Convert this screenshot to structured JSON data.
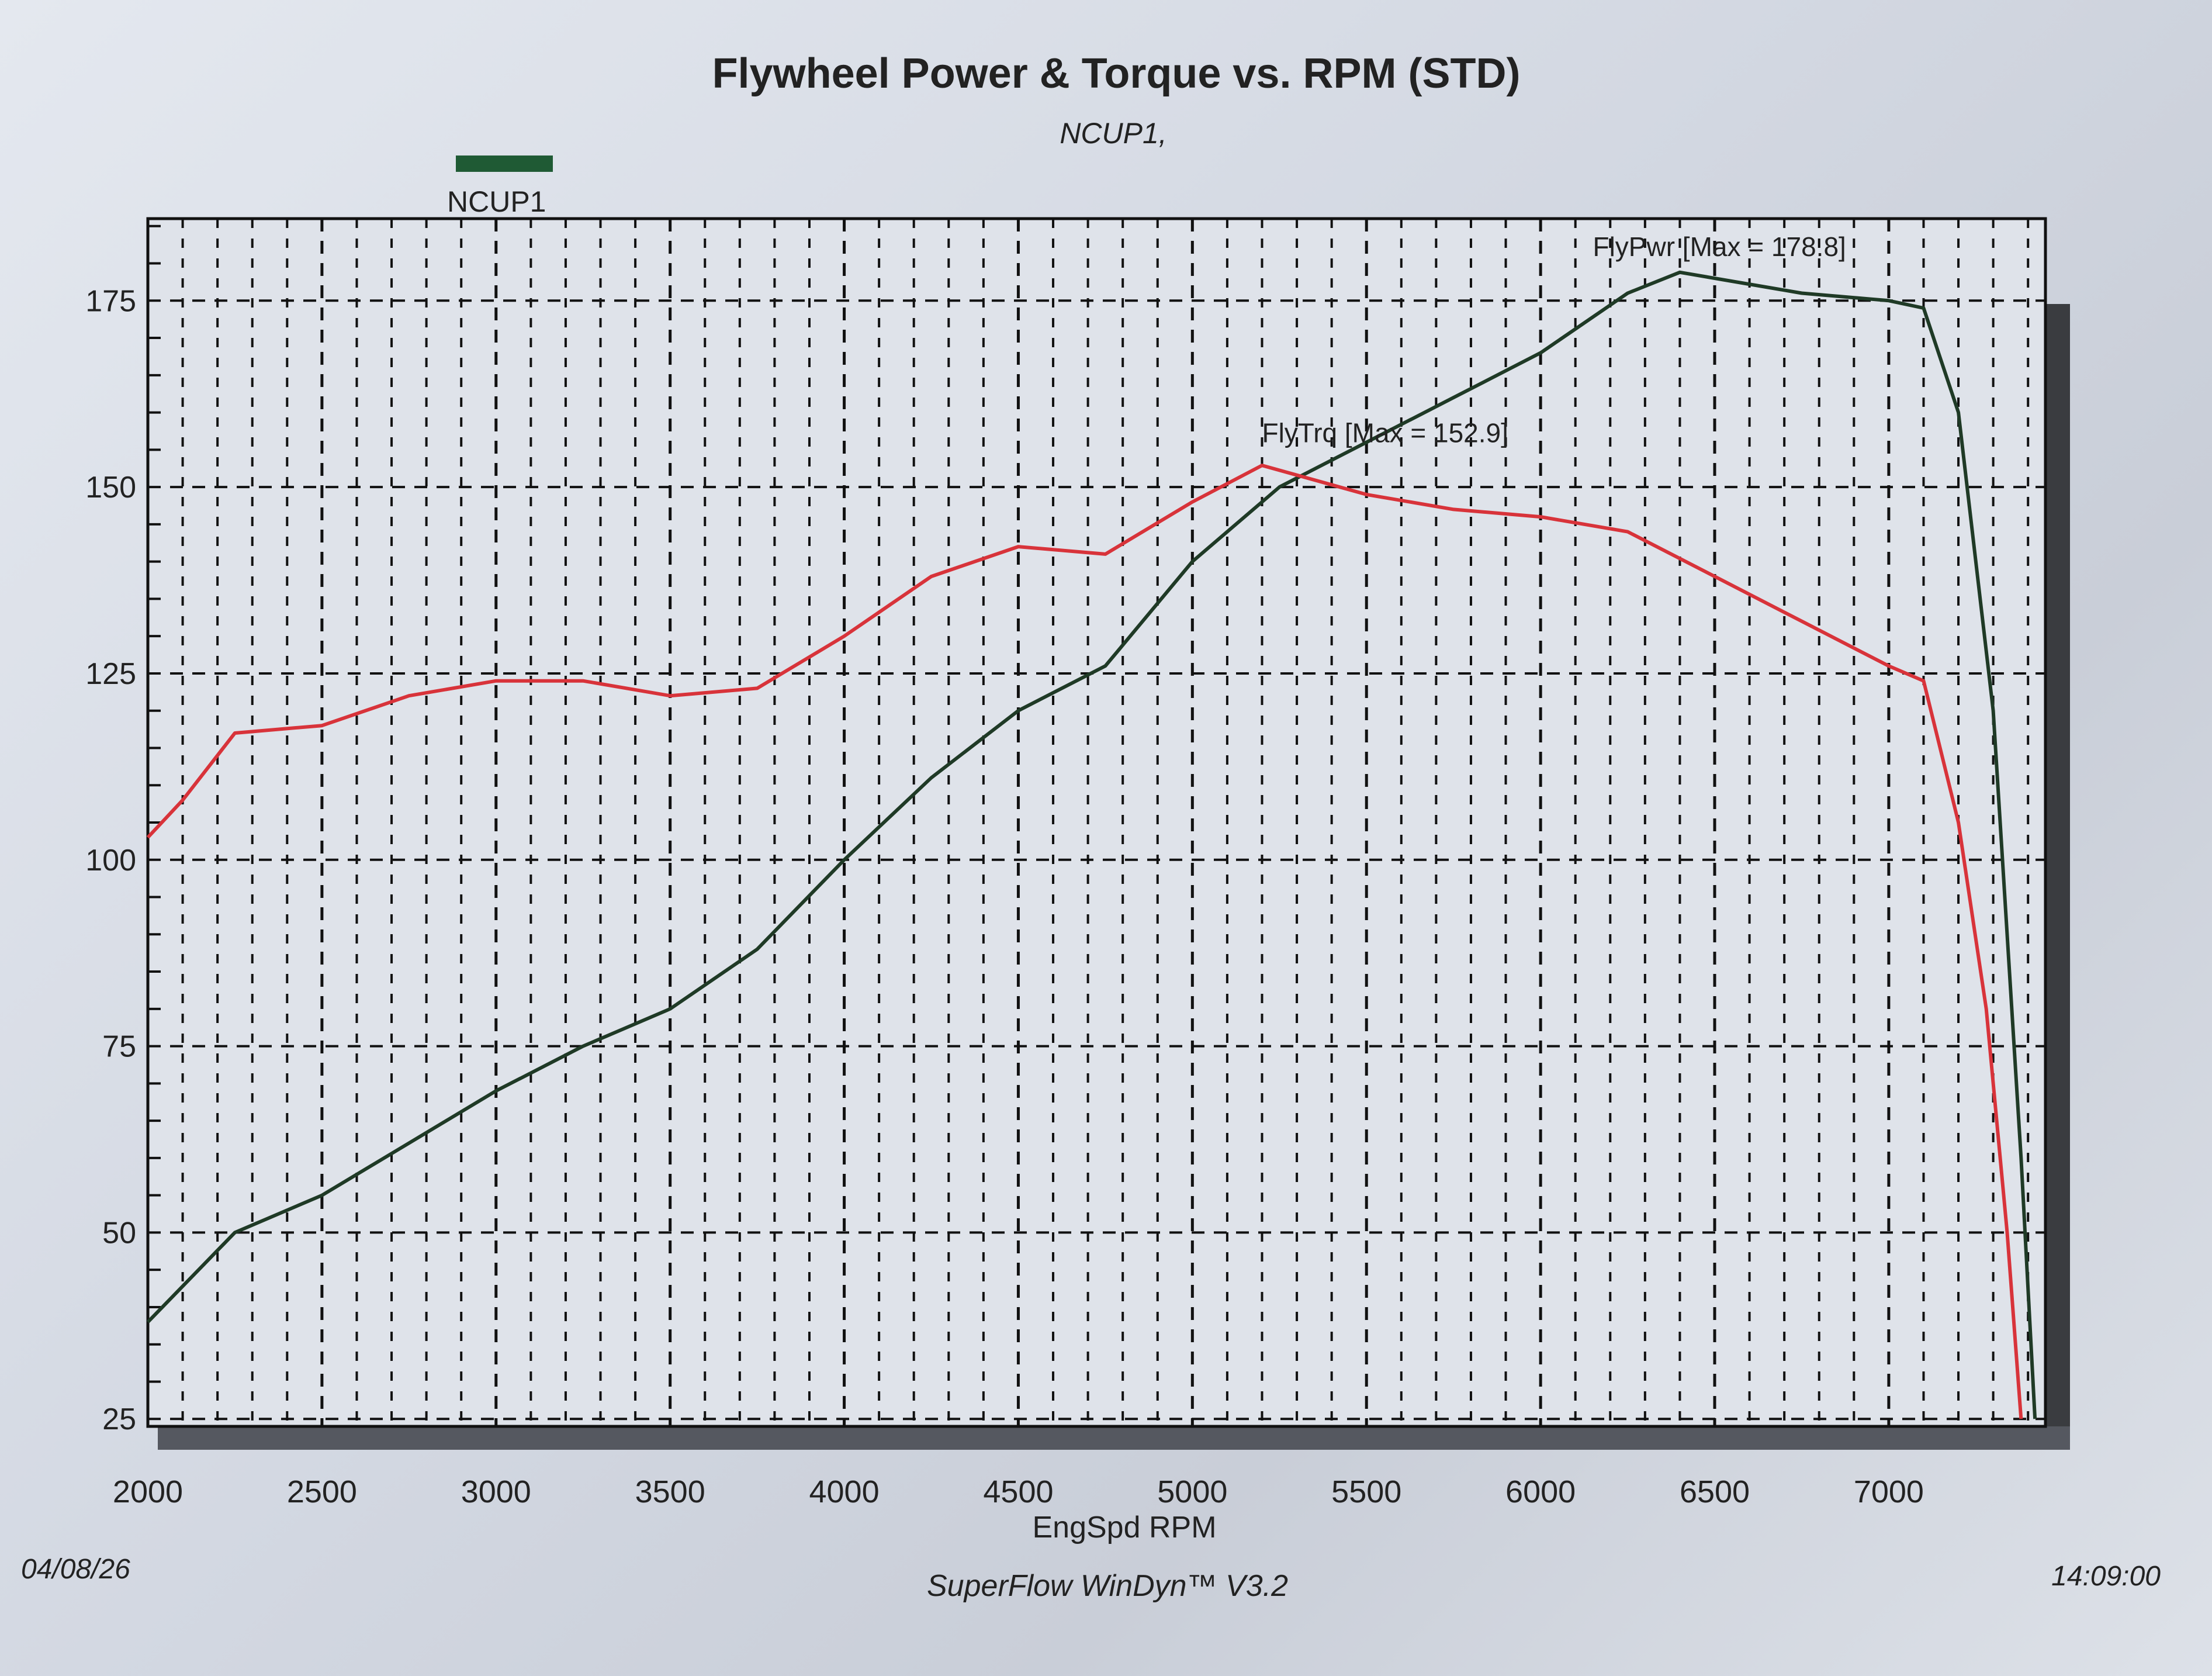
{
  "chart_data": {
    "type": "line",
    "title": "Flywheel Power & Torque vs. RPM (STD)",
    "subtitle": "NCUP1,",
    "legend": [
      {
        "name": "NCUP1",
        "color": "#1f5a34"
      }
    ],
    "legend_placement": "top-left",
    "xlabel": "EngSpd RPM",
    "ylabel": "",
    "xlim": [
      2000,
      7450
    ],
    "ylim": [
      24,
      186
    ],
    "x_ticks": [
      "2000",
      "2500",
      "3000",
      "3500",
      "4000",
      "4500",
      "5000",
      "5500",
      "6000",
      "6500",
      "7000"
    ],
    "y_ticks": [
      "25",
      "50",
      "75",
      "100",
      "125",
      "150",
      "175"
    ],
    "grid": true,
    "series": [
      {
        "name": "FlyPwr",
        "label": "FlyPwr [Max = 178.8]",
        "color": "#1f3a26",
        "max": 178.8,
        "x": [
          2000,
          2250,
          2500,
          2750,
          3000,
          3250,
          3500,
          3750,
          4000,
          4250,
          4500,
          4750,
          5000,
          5250,
          5500,
          5750,
          6000,
          6250,
          6400,
          6750,
          7000,
          7100,
          7200,
          7300,
          7380,
          7420
        ],
        "y": [
          38,
          50,
          55,
          62,
          69,
          75,
          80,
          88,
          100,
          111,
          120,
          126,
          140,
          150,
          156,
          162,
          168,
          176,
          178.8,
          176,
          175,
          174,
          160,
          120,
          60,
          25
        ]
      },
      {
        "name": "FlyTrq",
        "label": "FlyTrq [Max = 152.9]",
        "color": "#d8333a",
        "max": 152.9,
        "x": [
          2000,
          2100,
          2250,
          2500,
          2750,
          3000,
          3250,
          3500,
          3750,
          4000,
          4250,
          4500,
          4750,
          5000,
          5200,
          5500,
          5750,
          6000,
          6250,
          6500,
          6750,
          7000,
          7100,
          7200,
          7280,
          7340,
          7380
        ],
        "y": [
          103,
          108,
          117,
          118,
          122,
          124,
          124,
          122,
          123,
          130,
          138,
          142,
          141,
          148,
          152.9,
          149,
          147,
          146,
          144,
          138,
          132,
          126,
          124,
          105,
          80,
          50,
          25
        ]
      }
    ],
    "footer": {
      "date": "04/08/26",
      "software": "SuperFlow WinDyn™ V3.2",
      "time": "14:09:00"
    }
  }
}
